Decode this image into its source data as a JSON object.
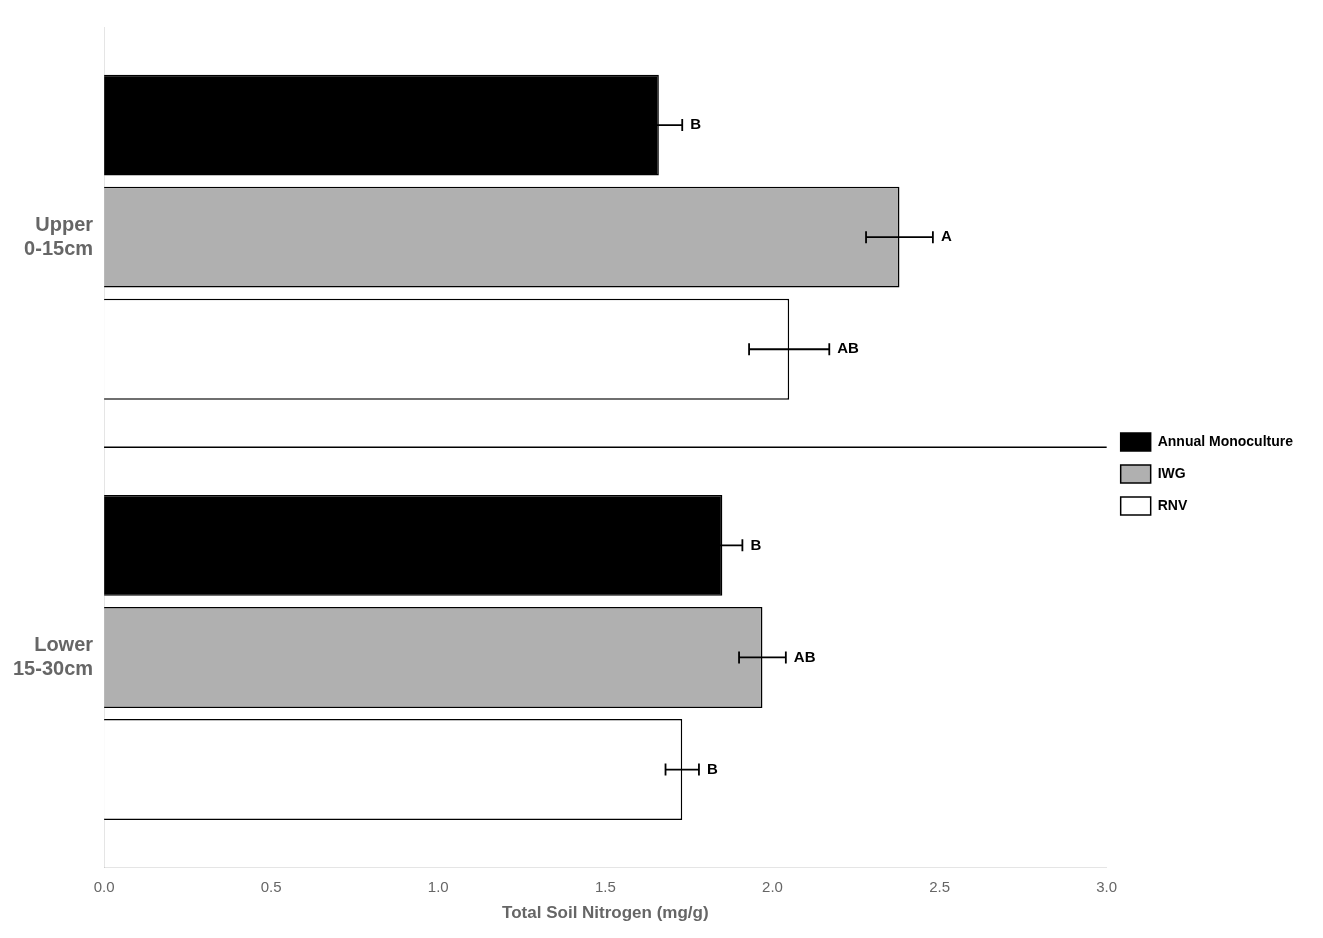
{
  "chart_data": {
    "type": "bar",
    "orientation": "horizontal",
    "categories": [
      "Upper\n0-15cm",
      "Lower\n15-30cm"
    ],
    "series": [
      {
        "name": "Annual Monoculture",
        "color": "#000000",
        "values": [
          1.66,
          1.85
        ],
        "errors": [
          0.07,
          0.06
        ],
        "significance": [
          "B",
          "B"
        ]
      },
      {
        "name": "IWG",
        "color": "#b0b0b0",
        "values": [
          2.38,
          1.97
        ],
        "errors": [
          0.1,
          0.07
        ],
        "significance": [
          "A",
          "AB"
        ]
      },
      {
        "name": "RNV",
        "color": "#ffffff",
        "values": [
          2.05,
          1.73
        ],
        "errors": [
          0.12,
          0.05
        ],
        "significance": [
          "AB",
          "B"
        ]
      }
    ],
    "xlabel": "Total Soil Nitrogen (mg/g)",
    "xlim": [
      0.0,
      3.0
    ],
    "xticks": [
      {
        "value": 0.0,
        "label": "0.0"
      },
      {
        "value": 0.5,
        "label": "0.5"
      },
      {
        "value": 1.0,
        "label": "1.0"
      },
      {
        "value": 1.5,
        "label": "1.5"
      },
      {
        "value": 2.0,
        "label": "2.0"
      },
      {
        "value": 2.5,
        "label": "2.5"
      },
      {
        "value": 3.0,
        "label": "3.0"
      }
    ],
    "grid": false,
    "legend": "right"
  }
}
